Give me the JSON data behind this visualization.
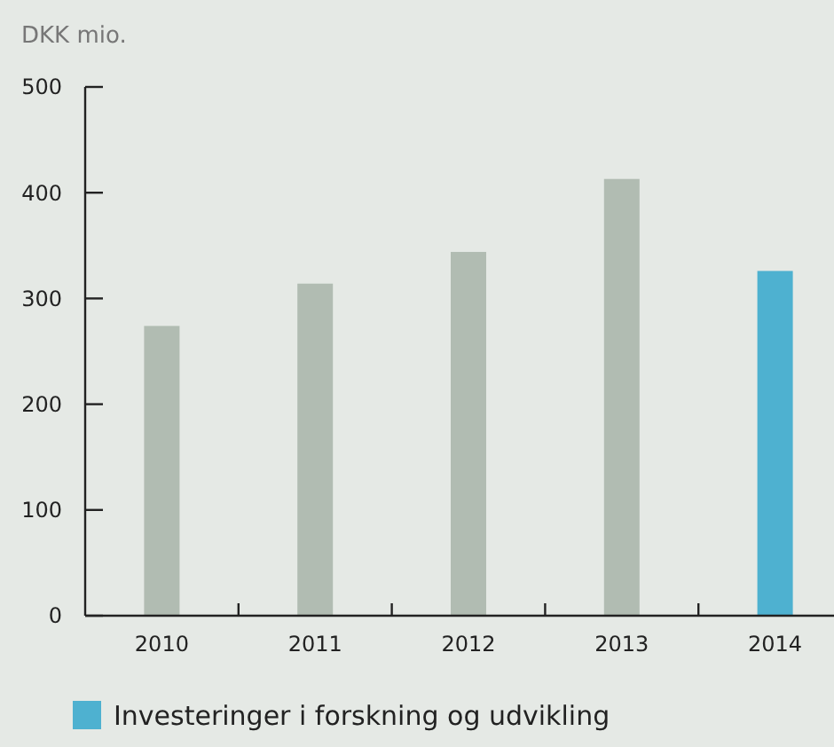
{
  "chart_data": {
    "type": "bar",
    "ylabel": "DKK mio.",
    "categories": [
      "2010",
      "2011",
      "2012",
      "2013",
      "2014"
    ],
    "series": [
      {
        "name": "Investeringer i forskning og udvikling",
        "color": "#4eb1d0",
        "colors": [
          "#b1bcb2",
          "#b1bcb2",
          "#b1bcb2",
          "#b1bcb2",
          "#4eb1d0"
        ],
        "values": [
          274,
          314,
          344,
          413,
          326
        ]
      }
    ],
    "ylim": [
      0,
      500
    ],
    "yticks": [
      0,
      100,
      200,
      300,
      400,
      500
    ],
    "grid": false,
    "legend": "bottom"
  }
}
